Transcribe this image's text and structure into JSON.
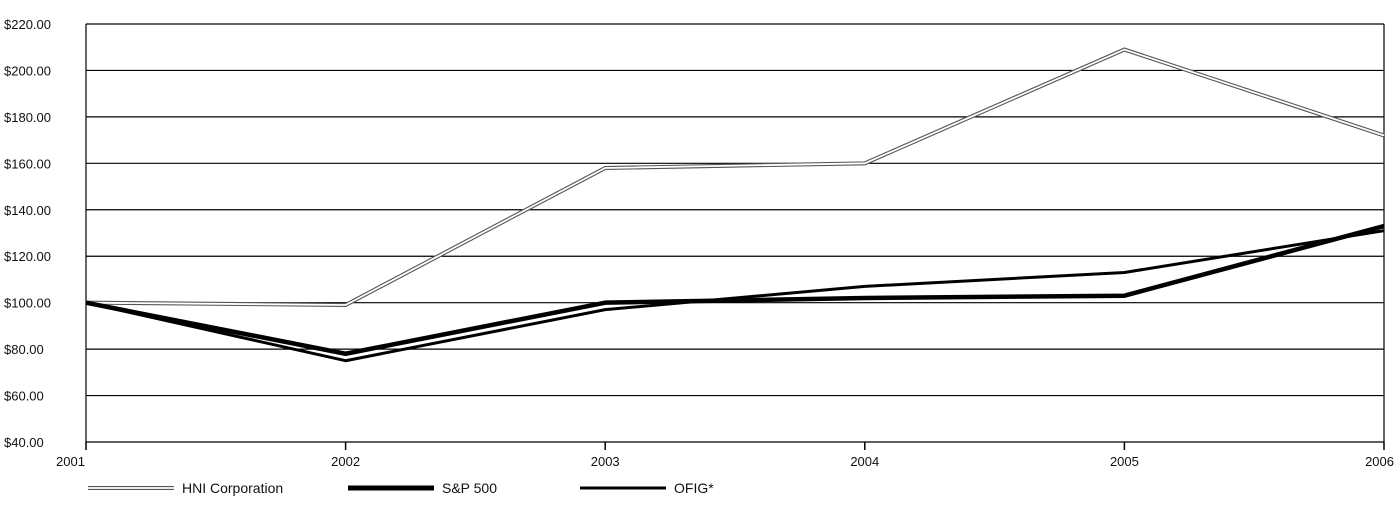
{
  "chart_data": {
    "type": "line",
    "title": "",
    "xlabel": "",
    "ylabel": "",
    "x": [
      "2001",
      "2002",
      "2003",
      "2004",
      "2005",
      "2006"
    ],
    "ylim": [
      40,
      220
    ],
    "yticks": [
      40,
      60,
      80,
      100,
      120,
      140,
      160,
      180,
      200,
      220
    ],
    "ytick_labels": [
      "$40.00",
      "$60.00",
      "$80.00",
      "$100.00",
      "$120.00",
      "$140.00",
      "$160.00",
      "$180.00",
      "$200.00",
      "$220.00"
    ],
    "grid": true,
    "legend_position": "bottom-left",
    "series": [
      {
        "name": "HNI Corporation",
        "values": [
          100,
          99,
          158,
          160,
          209,
          172
        ],
        "style": "double-outline",
        "color": "#555555"
      },
      {
        "name": "S&P 500",
        "values": [
          100,
          78,
          100,
          102,
          103,
          133
        ],
        "style": "thick",
        "color": "#000000"
      },
      {
        "name": "OFIG*",
        "values": [
          100,
          75,
          97,
          107,
          113,
          131
        ],
        "style": "medium",
        "color": "#000000"
      }
    ]
  }
}
